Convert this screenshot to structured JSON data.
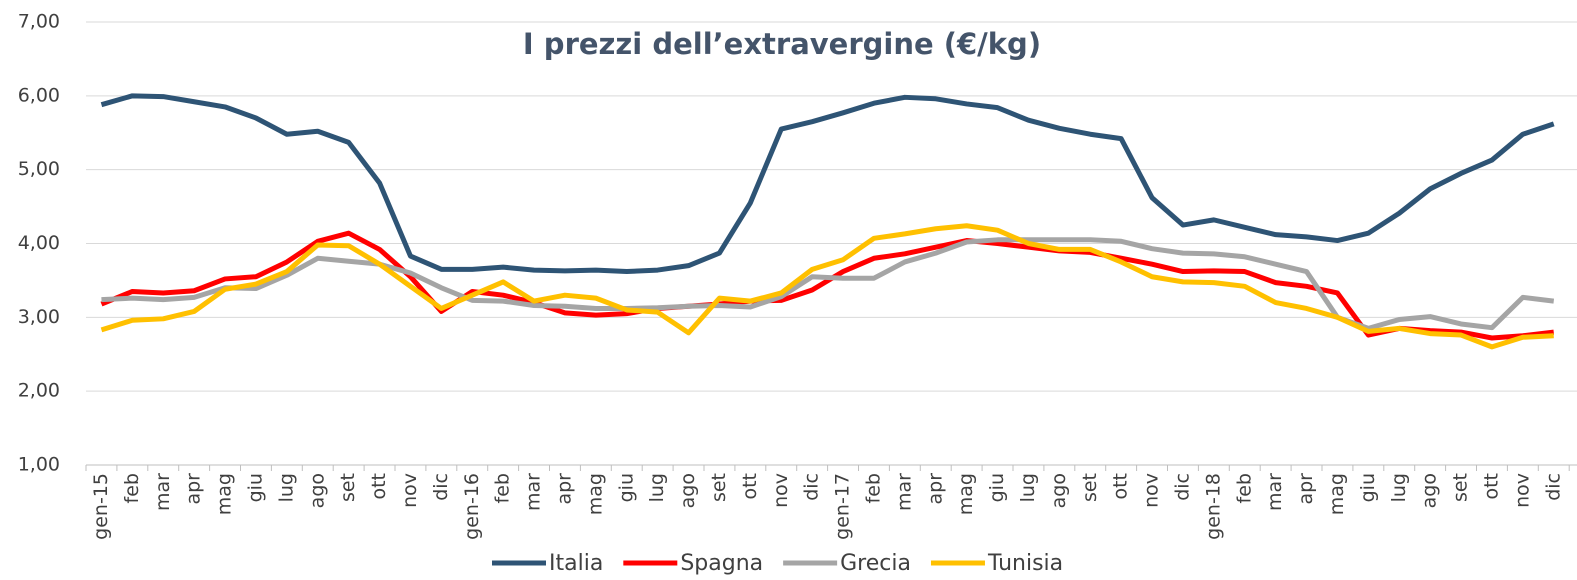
{
  "chart_data": {
    "type": "line",
    "title": "I prezzi dell’extravergine (€/kg)",
    "categories": [
      "gen-15",
      "feb",
      "mar",
      "apr",
      "mag",
      "giu",
      "lug",
      "ago",
      "set",
      "ott",
      "nov",
      "dic",
      "gen-16",
      "feb",
      "mar",
      "apr",
      "mag",
      "giu",
      "lug",
      "ago",
      "set",
      "ott",
      "nov",
      "dic",
      "gen-17",
      "feb",
      "mar",
      "apr",
      "mag",
      "giu",
      "lug",
      "ago",
      "set",
      "ott",
      "nov",
      "dic",
      "gen-18",
      "feb",
      "mar",
      "apr",
      "mag",
      "giu",
      "lug",
      "ago",
      "set",
      "ott",
      "nov",
      "dic"
    ],
    "series": [
      {
        "name": "Italia",
        "color": "#2e5475",
        "values": [
          5.88,
          6.0,
          5.99,
          5.92,
          5.85,
          5.7,
          5.48,
          5.52,
          5.37,
          4.82,
          3.83,
          3.65,
          3.65,
          3.68,
          3.64,
          3.63,
          3.64,
          3.62,
          3.64,
          3.7,
          3.87,
          4.55,
          5.55,
          5.65,
          5.77,
          5.9,
          5.98,
          5.96,
          5.89,
          5.84,
          5.67,
          5.56,
          5.48,
          5.42,
          4.62,
          4.25,
          4.32,
          4.22,
          4.12,
          4.09,
          4.04,
          4.14,
          4.41,
          4.74,
          4.95,
          5.13,
          5.48,
          5.62
        ]
      },
      {
        "name": "Spagna",
        "color": "#ff0000",
        "values": [
          3.18,
          3.35,
          3.33,
          3.36,
          3.52,
          3.55,
          3.75,
          4.03,
          4.14,
          3.92,
          3.55,
          3.08,
          3.35,
          3.3,
          3.2,
          3.06,
          3.03,
          3.05,
          3.12,
          3.15,
          3.18,
          3.22,
          3.23,
          3.37,
          3.62,
          3.8,
          3.86,
          3.95,
          4.04,
          4.0,
          3.95,
          3.9,
          3.88,
          3.8,
          3.72,
          3.62,
          3.63,
          3.62,
          3.47,
          3.42,
          3.33,
          2.76,
          2.85,
          2.82,
          2.8,
          2.72,
          2.75,
          2.8
        ]
      },
      {
        "name": "Grecia",
        "color": "#a5a5a5",
        "values": [
          3.24,
          3.26,
          3.24,
          3.27,
          3.4,
          3.39,
          3.57,
          3.8,
          3.76,
          3.72,
          3.6,
          3.4,
          3.23,
          3.22,
          3.16,
          3.15,
          3.12,
          3.12,
          3.13,
          3.15,
          3.16,
          3.14,
          3.28,
          3.55,
          3.53,
          3.53,
          3.75,
          3.87,
          4.02,
          4.05,
          4.05,
          4.05,
          4.05,
          4.03,
          3.93,
          3.87,
          3.86,
          3.82,
          3.72,
          3.62,
          3.0,
          2.85,
          2.97,
          3.01,
          2.91,
          2.86,
          3.27,
          3.22
        ]
      },
      {
        "name": "Tunisia",
        "color": "#ffc000",
        "values": [
          2.83,
          2.96,
          2.98,
          3.08,
          3.38,
          3.45,
          3.62,
          3.98,
          3.97,
          3.72,
          3.42,
          3.12,
          3.3,
          3.48,
          3.22,
          3.3,
          3.26,
          3.1,
          3.07,
          2.79,
          3.26,
          3.22,
          3.33,
          3.65,
          3.78,
          4.07,
          4.13,
          4.2,
          4.24,
          4.18,
          4.0,
          3.92,
          3.92,
          3.75,
          3.55,
          3.48,
          3.47,
          3.42,
          3.2,
          3.12,
          3.0,
          2.81,
          2.85,
          2.78,
          2.76,
          2.6,
          2.73,
          2.75
        ]
      }
    ],
    "ylim": [
      1,
      7
    ],
    "yticks": [
      {
        "value": 1,
        "label": "1,00"
      },
      {
        "value": 2,
        "label": "2,00"
      },
      {
        "value": 3,
        "label": "3,00"
      },
      {
        "value": 4,
        "label": "4,00"
      },
      {
        "value": 5,
        "label": "5,00"
      },
      {
        "value": 6,
        "label": "6,00"
      },
      {
        "value": 7,
        "label": "7,00"
      }
    ],
    "grid": true,
    "legend": "bottom"
  }
}
